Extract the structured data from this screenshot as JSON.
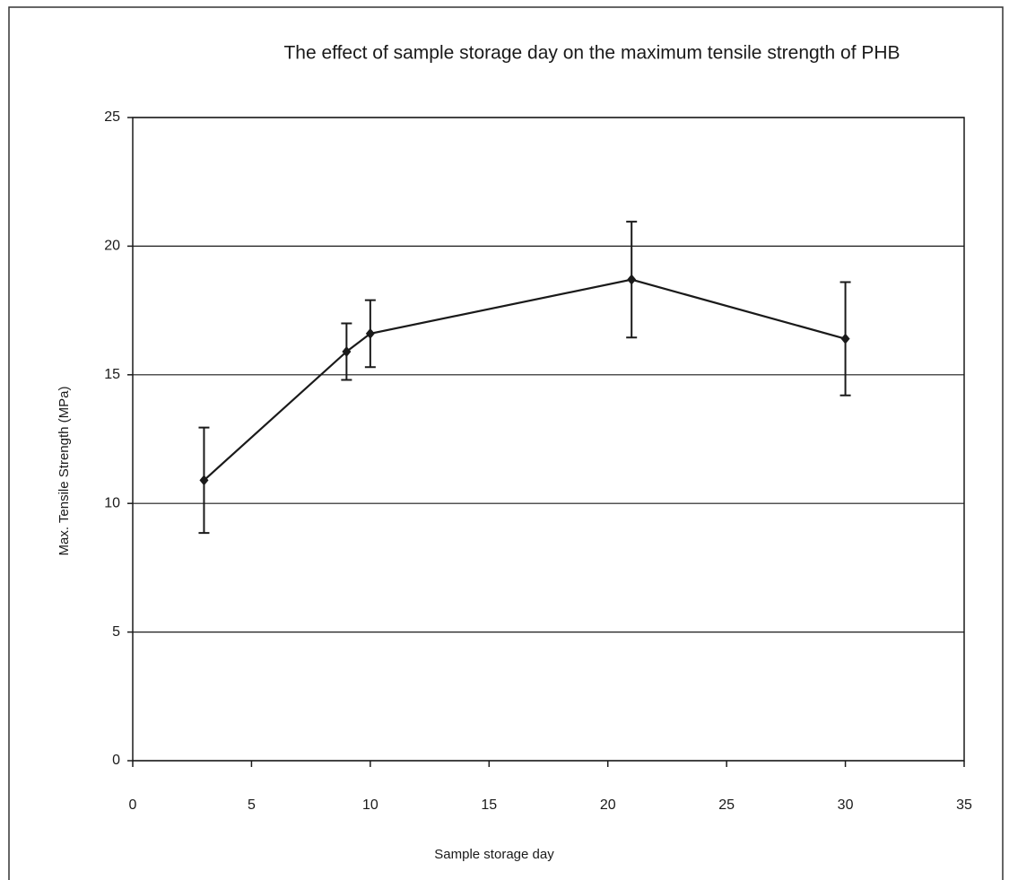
{
  "chart_data": {
    "type": "line",
    "title": "The effect of sample storage day on the maximum tensile strength of PHB",
    "x_label": "Sample storage day",
    "y_label": "Max. Tensile Strength (MPa)",
    "series": [
      {
        "color": "#1a1a1a",
        "x": [
          3,
          9,
          10,
          21,
          30
        ],
        "values": [
          10.9,
          15.9,
          16.6,
          18.7,
          16.4
        ],
        "errors": [
          2.05,
          1.1,
          1.3,
          2.25,
          2.2
        ]
      }
    ],
    "xlim": [
      0,
      35
    ],
    "xticks": [
      0,
      5,
      10,
      15,
      20,
      25,
      30,
      35
    ],
    "ylim": [
      0,
      25
    ],
    "yticks": [
      0,
      5,
      10,
      15,
      20,
      25
    ],
    "grid": true
  }
}
